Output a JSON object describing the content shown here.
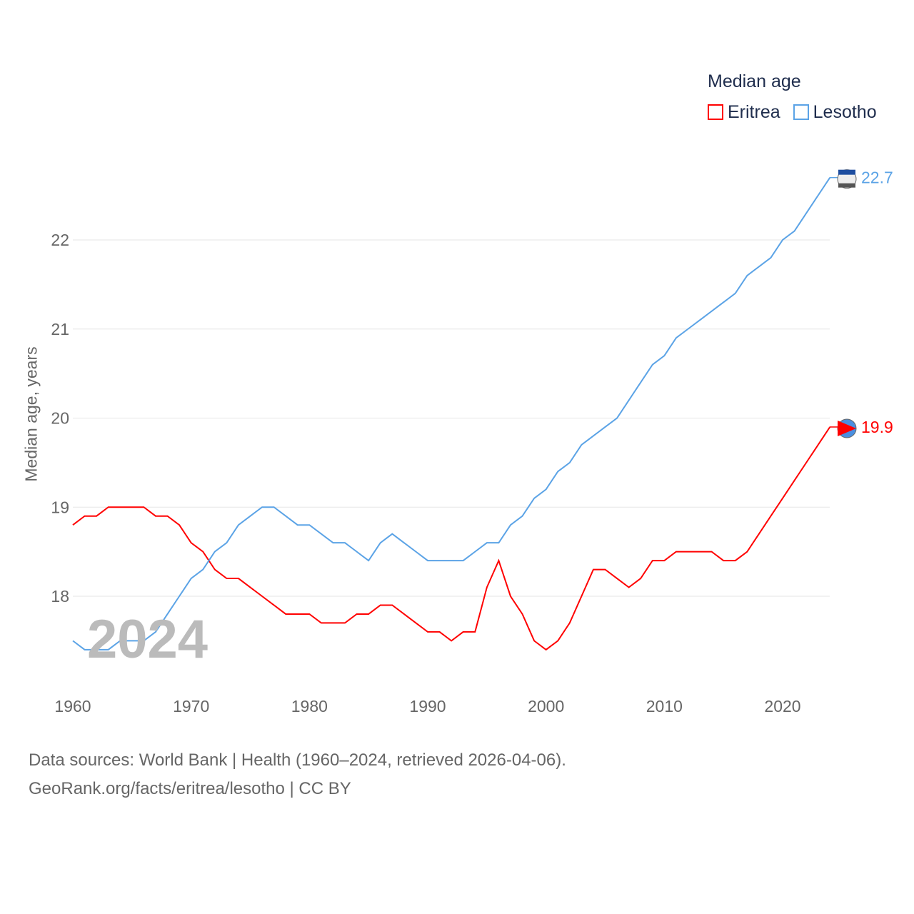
{
  "chart_data": {
    "type": "line",
    "legend_title": "Median age",
    "ylabel": "Median age, years",
    "year_label": "2024",
    "x_ticks": [
      1960,
      1970,
      1980,
      1990,
      2000,
      2010,
      2020
    ],
    "y_ticks": [
      18,
      19,
      20,
      21,
      22
    ],
    "xlim": [
      1960,
      2024
    ],
    "legend_position": "top-right",
    "grid": true,
    "x": [
      1960,
      1961,
      1962,
      1963,
      1964,
      1965,
      1966,
      1967,
      1968,
      1969,
      1970,
      1971,
      1972,
      1973,
      1974,
      1975,
      1976,
      1977,
      1978,
      1979,
      1980,
      1981,
      1982,
      1983,
      1984,
      1985,
      1986,
      1987,
      1988,
      1989,
      1990,
      1991,
      1992,
      1993,
      1994,
      1995,
      1996,
      1997,
      1998,
      1999,
      2000,
      2001,
      2002,
      2003,
      2004,
      2005,
      2006,
      2007,
      2008,
      2009,
      2010,
      2011,
      2012,
      2013,
      2014,
      2015,
      2016,
      2017,
      2018,
      2019,
      2020,
      2021,
      2022,
      2023,
      2024
    ],
    "series": [
      {
        "name": "Eritrea",
        "color": "#ff0000",
        "end_label": "19.9",
        "values": [
          18.8,
          18.9,
          18.9,
          19.0,
          19.0,
          19.0,
          19.0,
          18.9,
          18.9,
          18.8,
          18.6,
          18.5,
          18.3,
          18.2,
          18.2,
          18.1,
          18.0,
          17.9,
          17.8,
          17.8,
          17.8,
          17.7,
          17.7,
          17.7,
          17.8,
          17.8,
          17.9,
          17.9,
          17.8,
          17.7,
          17.6,
          17.6,
          17.5,
          17.6,
          17.6,
          18.1,
          18.4,
          18.0,
          17.8,
          17.5,
          17.4,
          17.5,
          17.7,
          18.0,
          18.3,
          18.3,
          18.2,
          18.1,
          18.2,
          18.4,
          18.4,
          18.5,
          18.5,
          18.5,
          18.5,
          18.4,
          18.4,
          18.5,
          18.7,
          18.9,
          19.1,
          19.3,
          19.5,
          19.7,
          19.9
        ]
      },
      {
        "name": "Lesotho",
        "color": "#5ba3e6",
        "end_label": "22.7",
        "values": [
          17.5,
          17.4,
          17.4,
          17.4,
          17.5,
          17.5,
          17.5,
          17.6,
          17.8,
          18.0,
          18.2,
          18.3,
          18.5,
          18.6,
          18.8,
          18.9,
          19.0,
          19.0,
          18.9,
          18.8,
          18.8,
          18.7,
          18.6,
          18.6,
          18.5,
          18.4,
          18.6,
          18.7,
          18.6,
          18.5,
          18.4,
          18.4,
          18.4,
          18.4,
          18.5,
          18.6,
          18.6,
          18.8,
          18.9,
          19.1,
          19.2,
          19.4,
          19.5,
          19.7,
          19.8,
          19.9,
          20.0,
          20.2,
          20.4,
          20.6,
          20.7,
          20.9,
          21.0,
          21.1,
          21.2,
          21.3,
          21.4,
          21.6,
          21.7,
          21.8,
          22.0,
          22.1,
          22.3,
          22.5,
          22.7
        ]
      }
    ]
  },
  "footer": {
    "line1": "Data sources: World Bank | Health (1960–2024, retrieved 2026-04-06).",
    "line2": "GeoRank.org/facts/eritrea/lesotho | CC BY"
  }
}
